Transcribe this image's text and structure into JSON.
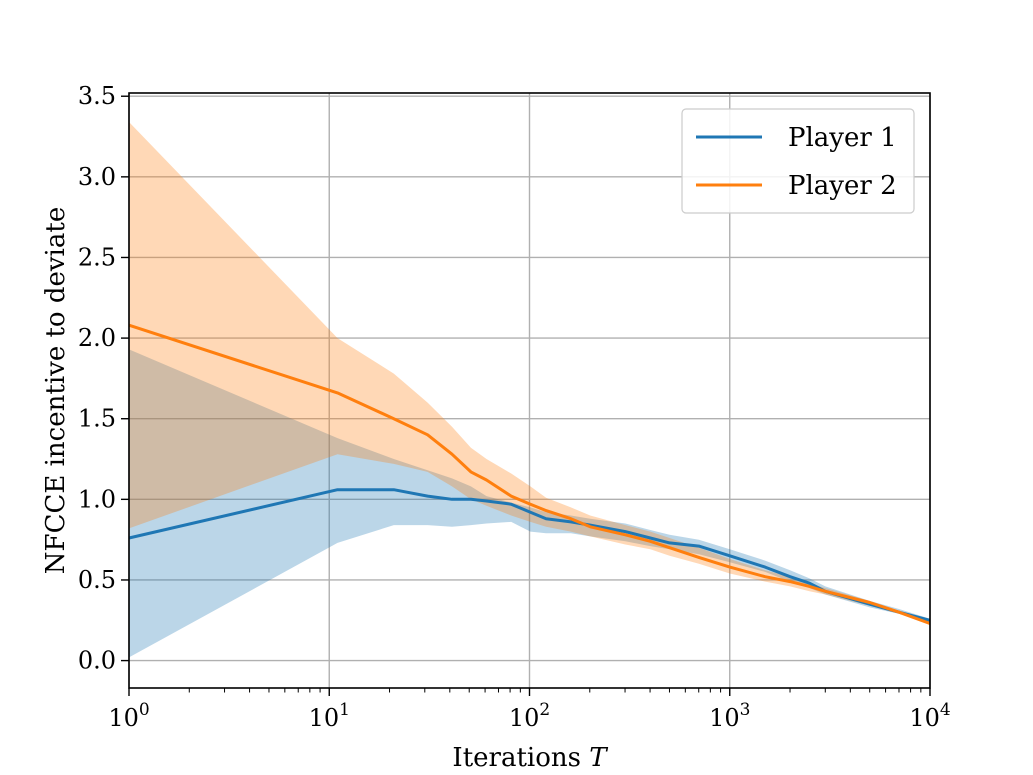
{
  "chart_data": {
    "type": "line",
    "title": "",
    "xlabel": "Iterations",
    "xlabel_var": "T",
    "ylabel": "NFCCE incentive to deviate",
    "xscale": "log",
    "xlim": [
      1,
      10000
    ],
    "ylim": [
      -0.17,
      3.52
    ],
    "x_ticks": [
      {
        "value": 1,
        "base": "10",
        "exp": "0"
      },
      {
        "value": 10,
        "base": "10",
        "exp": "1"
      },
      {
        "value": 100,
        "base": "10",
        "exp": "2"
      },
      {
        "value": 1000,
        "base": "10",
        "exp": "3"
      },
      {
        "value": 10000,
        "base": "10",
        "exp": "4"
      }
    ],
    "y_ticks": [
      {
        "value": 0.0,
        "label": "0.0"
      },
      {
        "value": 0.5,
        "label": "0.5"
      },
      {
        "value": 1.0,
        "label": "1.0"
      },
      {
        "value": 1.5,
        "label": "1.5"
      },
      {
        "value": 2.0,
        "label": "2.0"
      },
      {
        "value": 2.5,
        "label": "2.5"
      },
      {
        "value": 3.0,
        "label": "3.0"
      },
      {
        "value": 3.5,
        "label": "3.5"
      }
    ],
    "grid": true,
    "legend_position": "top-right",
    "series": [
      {
        "name": "Player 1",
        "color": "#1f77b4",
        "band_color": "#1f77b4",
        "points": [
          [
            1,
            0.76
          ],
          [
            11,
            1.06
          ],
          [
            21,
            1.06
          ],
          [
            31,
            1.02
          ],
          [
            41,
            1.0
          ],
          [
            51,
            1.0
          ],
          [
            61,
            0.99
          ],
          [
            81,
            0.97
          ],
          [
            101,
            0.92
          ],
          [
            121,
            0.88
          ],
          [
            161,
            0.86
          ],
          [
            201,
            0.84
          ],
          [
            301,
            0.8
          ],
          [
            401,
            0.76
          ],
          [
            501,
            0.73
          ],
          [
            701,
            0.71
          ],
          [
            1001,
            0.65
          ],
          [
            1501,
            0.58
          ],
          [
            2001,
            0.52
          ],
          [
            2501,
            0.48
          ],
          [
            3001,
            0.43
          ],
          [
            5001,
            0.35
          ],
          [
            7001,
            0.3
          ],
          [
            10000,
            0.25
          ]
        ],
        "upper": [
          [
            1,
            1.93
          ],
          [
            11,
            1.38
          ],
          [
            21,
            1.25
          ],
          [
            31,
            1.18
          ],
          [
            41,
            1.13
          ],
          [
            51,
            1.08
          ],
          [
            61,
            1.02
          ],
          [
            81,
            0.98
          ],
          [
            101,
            0.95
          ],
          [
            121,
            0.92
          ],
          [
            161,
            0.9
          ],
          [
            201,
            0.88
          ],
          [
            301,
            0.85
          ],
          [
            401,
            0.81
          ],
          [
            501,
            0.78
          ],
          [
            701,
            0.75
          ],
          [
            1001,
            0.69
          ],
          [
            1501,
            0.62
          ],
          [
            2001,
            0.56
          ],
          [
            2501,
            0.51
          ],
          [
            3001,
            0.46
          ],
          [
            5001,
            0.37
          ],
          [
            7001,
            0.32
          ],
          [
            10000,
            0.26
          ]
        ],
        "lower": [
          [
            1,
            0.02
          ],
          [
            11,
            0.73
          ],
          [
            21,
            0.84
          ],
          [
            31,
            0.84
          ],
          [
            41,
            0.83
          ],
          [
            51,
            0.84
          ],
          [
            61,
            0.85
          ],
          [
            81,
            0.86
          ],
          [
            101,
            0.8
          ],
          [
            121,
            0.79
          ],
          [
            161,
            0.79
          ],
          [
            201,
            0.77
          ],
          [
            301,
            0.74
          ],
          [
            401,
            0.71
          ],
          [
            501,
            0.69
          ],
          [
            701,
            0.66
          ],
          [
            1001,
            0.61
          ],
          [
            1501,
            0.55
          ],
          [
            2001,
            0.49
          ],
          [
            2501,
            0.45
          ],
          [
            3001,
            0.41
          ],
          [
            5001,
            0.33
          ],
          [
            7001,
            0.29
          ],
          [
            10000,
            0.24
          ]
        ]
      },
      {
        "name": "Player 2",
        "color": "#ff7f0e",
        "band_color": "#ff7f0e",
        "points": [
          [
            1,
            2.08
          ],
          [
            11,
            1.66
          ],
          [
            21,
            1.5
          ],
          [
            31,
            1.4
          ],
          [
            41,
            1.28
          ],
          [
            51,
            1.17
          ],
          [
            61,
            1.12
          ],
          [
            81,
            1.02
          ],
          [
            101,
            0.97
          ],
          [
            121,
            0.93
          ],
          [
            161,
            0.88
          ],
          [
            201,
            0.83
          ],
          [
            301,
            0.78
          ],
          [
            401,
            0.74
          ],
          [
            501,
            0.7
          ],
          [
            701,
            0.64
          ],
          [
            1001,
            0.58
          ],
          [
            1501,
            0.52
          ],
          [
            2001,
            0.49
          ],
          [
            2501,
            0.46
          ],
          [
            3001,
            0.43
          ],
          [
            5001,
            0.36
          ],
          [
            7001,
            0.3
          ],
          [
            10000,
            0.23
          ]
        ],
        "upper": [
          [
            1,
            3.34
          ],
          [
            11,
            2.0
          ],
          [
            21,
            1.78
          ],
          [
            31,
            1.6
          ],
          [
            41,
            1.45
          ],
          [
            51,
            1.32
          ],
          [
            61,
            1.25
          ],
          [
            81,
            1.16
          ],
          [
            101,
            1.08
          ],
          [
            121,
            1.01
          ],
          [
            161,
            0.95
          ],
          [
            201,
            0.9
          ],
          [
            301,
            0.84
          ],
          [
            401,
            0.8
          ],
          [
            501,
            0.76
          ],
          [
            701,
            0.7
          ],
          [
            1001,
            0.63
          ],
          [
            1501,
            0.56
          ],
          [
            2001,
            0.52
          ],
          [
            2501,
            0.48
          ],
          [
            3001,
            0.45
          ],
          [
            5001,
            0.37
          ],
          [
            7001,
            0.31
          ],
          [
            10000,
            0.24
          ]
        ],
        "lower": [
          [
            1,
            0.82
          ],
          [
            11,
            1.28
          ],
          [
            21,
            1.22
          ],
          [
            31,
            1.17
          ],
          [
            41,
            1.08
          ],
          [
            51,
            1.0
          ],
          [
            61,
            0.96
          ],
          [
            81,
            0.9
          ],
          [
            101,
            0.86
          ],
          [
            121,
            0.83
          ],
          [
            161,
            0.8
          ],
          [
            201,
            0.77
          ],
          [
            301,
            0.72
          ],
          [
            401,
            0.69
          ],
          [
            501,
            0.65
          ],
          [
            701,
            0.6
          ],
          [
            1001,
            0.54
          ],
          [
            1501,
            0.49
          ],
          [
            2001,
            0.46
          ],
          [
            2501,
            0.43
          ],
          [
            3001,
            0.41
          ],
          [
            5001,
            0.34
          ],
          [
            7001,
            0.29
          ],
          [
            10000,
            0.22
          ]
        ]
      }
    ]
  }
}
